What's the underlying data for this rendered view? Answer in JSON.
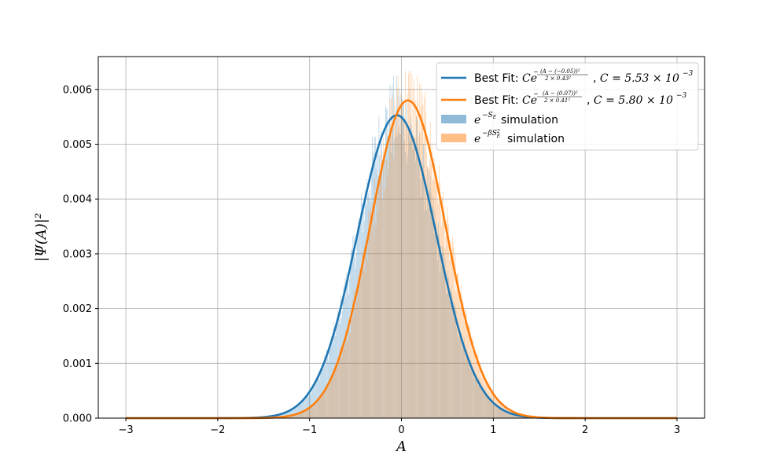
{
  "chart_data": {
    "type": "area",
    "xlabel": "A",
    "ylabel": "|Ψ(A)|²",
    "xlim": [
      -3.3,
      3.3
    ],
    "ylim": [
      0,
      0.0066
    ],
    "xticks": [
      -3,
      -2,
      -1,
      0,
      1,
      2,
      3
    ],
    "xtick_labels": [
      "−3",
      "−2",
      "−1",
      "0",
      "1",
      "2",
      "3"
    ],
    "yticks": [
      0.0,
      0.001,
      0.002,
      0.003,
      0.004,
      0.005,
      0.006
    ],
    "ytick_labels": [
      "0.000",
      "0.001",
      "0.002",
      "0.003",
      "0.004",
      "0.005",
      "0.006"
    ],
    "grid": true,
    "legend_position": "top-right",
    "series": [
      {
        "kind": "line",
        "legend_label": "Best Fit: Ce^{-(A-(-0.05))²/(2×0.43²)}, C = 5.53×10⁻³",
        "C": 0.00553,
        "mu": -0.05,
        "sigma": 0.43,
        "color": "#1f77b4"
      },
      {
        "kind": "line",
        "legend_label": "Best Fit: Ce^{-(A-(0.07))²/(2×0.41²)}, C = 5.80×10⁻³",
        "C": 0.0058,
        "mu": 0.07,
        "sigma": 0.41,
        "color": "#ff7f0e"
      },
      {
        "kind": "histogram",
        "legend_label": "e^{-S_E} simulation",
        "follows_fit": 0,
        "color": "#1f77b4"
      },
      {
        "kind": "histogram",
        "legend_label": "e^{-βS_E²} simulation",
        "follows_fit": 1,
        "color": "#ff7f0e"
      }
    ]
  },
  "legend": {
    "fit1": {
      "prefix": "Best Fit: ",
      "c_text": "C = 5.53 × 10",
      "c_exp": "−3",
      "mu_text": "(A − (−0.05))²",
      "den_text": "2 × 0.43²"
    },
    "fit2": {
      "prefix": "Best Fit: ",
      "c_text": "C = 5.80 × 10",
      "c_exp": "−3",
      "mu_text": "(A − (0.07))²",
      "den_text": "2 × 0.41²"
    },
    "hist1": {
      "suffix": " simulation",
      "exp": "−S"
    },
    "hist2": {
      "suffix": " simulation",
      "exp": "−βS"
    }
  }
}
